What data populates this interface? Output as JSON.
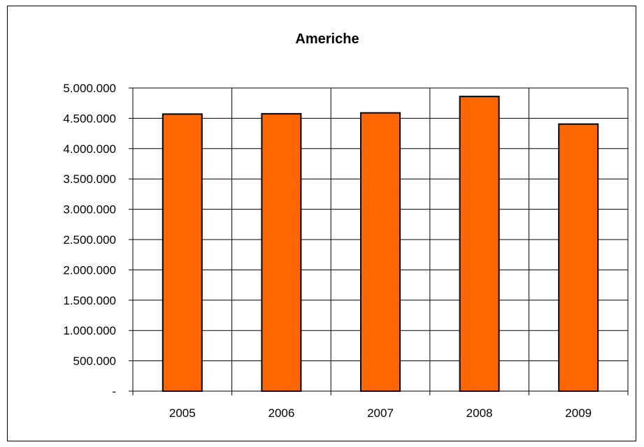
{
  "chart_data": {
    "type": "bar",
    "title": "Americhe",
    "categories": [
      "2005",
      "2006",
      "2007",
      "2008",
      "2009"
    ],
    "values": [
      4570000,
      4575000,
      4590000,
      4860000,
      4405000
    ],
    "ylim": [
      0,
      5000000
    ],
    "yticks": [
      0,
      500000,
      1000000,
      1500000,
      2000000,
      2500000,
      3000000,
      3500000,
      4000000,
      4500000,
      5000000
    ],
    "ytick_labels": [
      "-",
      "500.000",
      "1.000.000",
      "1.500.000",
      "2.000.000",
      "2.500.000",
      "3.000.000",
      "3.500.000",
      "4.000.000",
      "4.500.000",
      "5.000.000"
    ],
    "grid": true,
    "legend": "none",
    "colors": {
      "bar": "#FF6600",
      "bar_stroke": "#000000",
      "grid": "#000000"
    }
  }
}
